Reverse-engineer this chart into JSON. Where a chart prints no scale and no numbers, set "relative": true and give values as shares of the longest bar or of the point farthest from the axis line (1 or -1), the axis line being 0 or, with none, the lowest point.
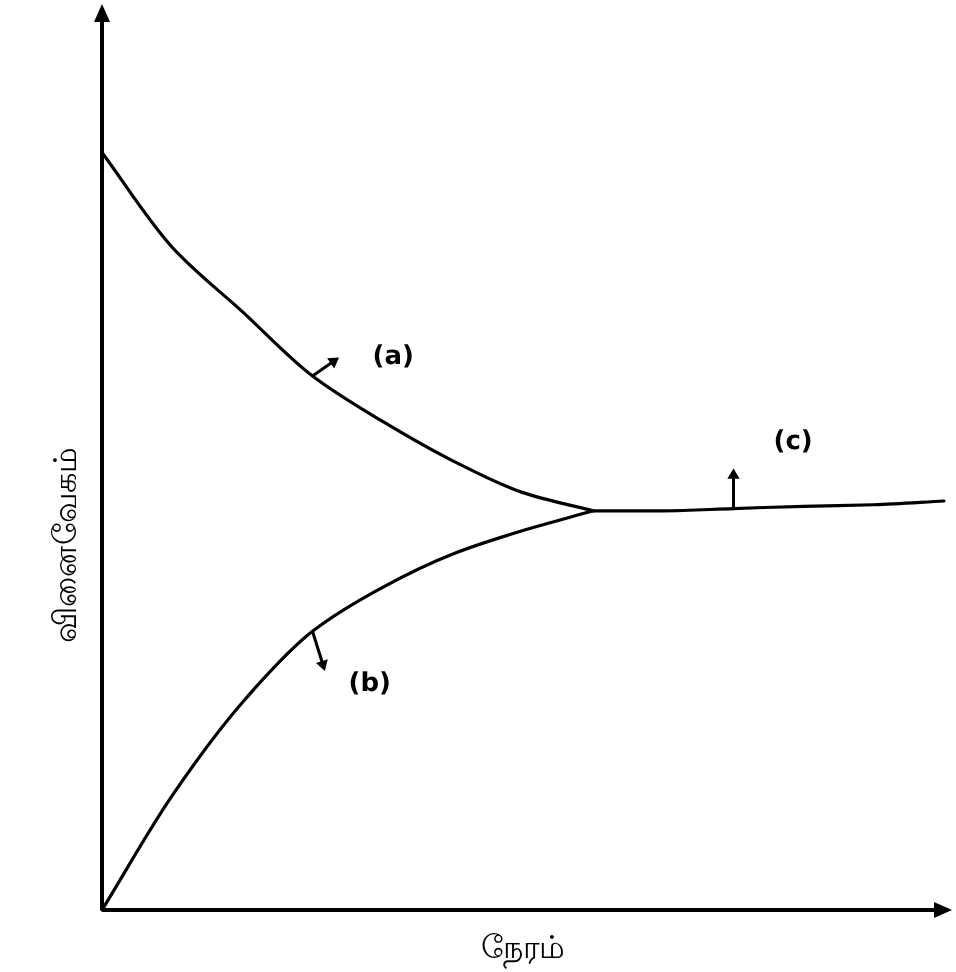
{
  "chart_data": {
    "type": "line",
    "relative": true,
    "xlabel": "நேரம்",
    "ylabel": "வினைவேகம்",
    "categories": [
      null,
      null,
      null,
      null,
      null,
      null,
      null,
      null,
      null,
      null,
      null,
      null,
      null
    ],
    "series": [
      {
        "name": "(a)",
        "color": "#000000",
        "values": [
          1.0,
          0.875,
          0.79,
          0.705,
          0.645,
          0.593,
          0.551,
          0.527,
          null,
          null,
          null,
          null,
          null
        ]
      },
      {
        "name": "(b)",
        "color": "#000000",
        "values": [
          0,
          0.151,
          0.274,
          0.368,
          0.426,
          0.47,
          0.501,
          0.527,
          null,
          null,
          null,
          null,
          null
        ]
      },
      {
        "name": "(c)",
        "color": "#000000",
        "values": [
          null,
          null,
          null,
          null,
          null,
          null,
          null,
          0.527,
          0.527,
          0.53,
          0.533,
          0.535,
          0.54
        ]
      }
    ]
  }
}
